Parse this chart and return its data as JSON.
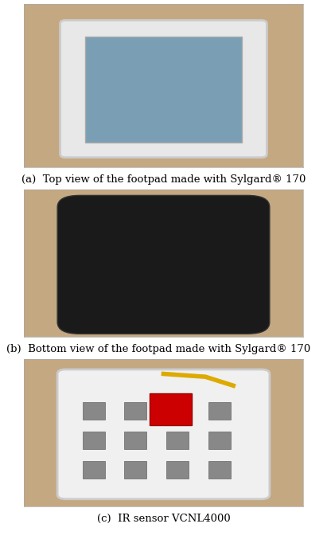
{
  "caption_a": "(a)  Top view of the footpad made with Sylgard® 170",
  "caption_b": "(b)  Bottom view of the footpad made with Sylgard® 170",
  "caption_c": "(c)  IR sensor VCNL4000",
  "fig_width": 4.11,
  "fig_height": 6.92,
  "bg_color": "#ffffff",
  "caption_fontsize": 9.5,
  "img_a_ystart": 0,
  "img_a_yend": 215,
  "img_b_ystart": 230,
  "img_b_yend": 430,
  "img_c_ystart": 445,
  "img_c_yend": 645
}
